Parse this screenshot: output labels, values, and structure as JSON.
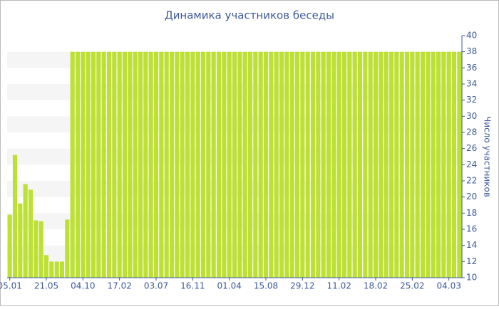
{
  "chart_data": {
    "type": "bar",
    "title": "Динамика участников беседы",
    "y_label": "Число участников",
    "categories": [
      "05.01",
      null,
      null,
      null,
      null,
      null,
      null,
      "21.05",
      null,
      null,
      null,
      null,
      null,
      null,
      "04.10",
      null,
      null,
      null,
      null,
      null,
      null,
      "17.02",
      null,
      null,
      null,
      null,
      null,
      null,
      "03.07",
      null,
      null,
      null,
      null,
      null,
      null,
      "16.11",
      null,
      null,
      null,
      null,
      null,
      null,
      "01.04",
      null,
      null,
      null,
      null,
      null,
      null,
      "15.08",
      null,
      null,
      null,
      null,
      null,
      null,
      "29.12",
      null,
      null,
      null,
      null,
      null,
      null,
      "11.02",
      null,
      null,
      null,
      null,
      null,
      null,
      "18.02",
      null,
      null,
      null,
      null,
      null,
      null,
      "25.02",
      null,
      null,
      null,
      null,
      null,
      null,
      "04.03",
      null,
      null
    ],
    "values": [
      17.8,
      25.2,
      19.2,
      21.6,
      20.9,
      17.1,
      17.0,
      12.8,
      12.0,
      12.0,
      12.0,
      17.2,
      38,
      38,
      38,
      38,
      38,
      38,
      38,
      38,
      38,
      38,
      38,
      38,
      38,
      38,
      38,
      38,
      38,
      38,
      38,
      38,
      38,
      38,
      38,
      38,
      38,
      38,
      38,
      38,
      38,
      38,
      38,
      38,
      38,
      38,
      38,
      38,
      38,
      38,
      38,
      38,
      38,
      38,
      38,
      38,
      38,
      38,
      38,
      38,
      38,
      38,
      38,
      38,
      38,
      38,
      38,
      38,
      38,
      38,
      38,
      38,
      38,
      38,
      38,
      38,
      38,
      38,
      38,
      38,
      38,
      38,
      38,
      38,
      38,
      38,
      38
    ],
    "color": "#bde034",
    "ylim": [
      10,
      40
    ],
    "yticks": [
      10,
      12,
      14,
      16,
      18,
      20,
      22,
      24,
      26,
      28,
      30,
      32,
      34,
      36,
      38,
      40
    ],
    "y_axis_side": "right",
    "grid": "bands"
  }
}
